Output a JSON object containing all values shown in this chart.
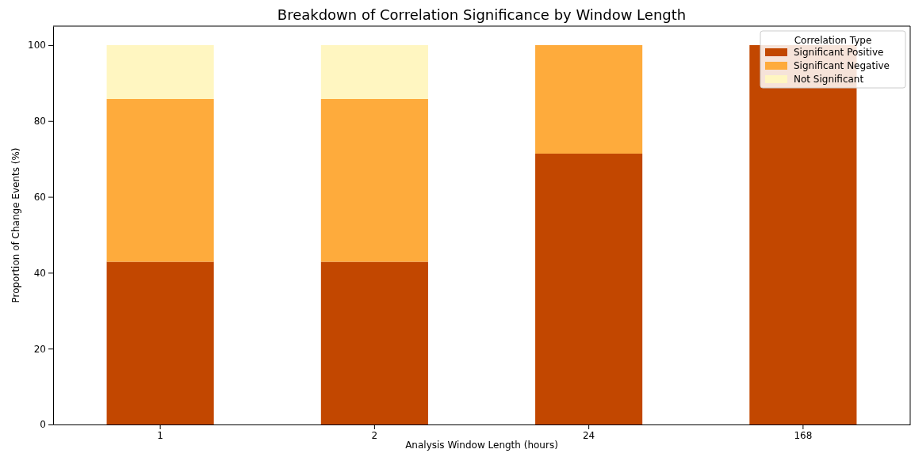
{
  "chart_data": {
    "type": "bar",
    "title": "Breakdown of Correlation Significance by Window Length",
    "xlabel": "Analysis Window Length (hours)",
    "ylabel": "Proportion of Change Events (%)",
    "legend_title": "Correlation Type",
    "categories": [
      "1",
      "2",
      "24",
      "168"
    ],
    "stacked": true,
    "ylim": [
      0,
      105
    ],
    "yticks": [
      0,
      20,
      40,
      60,
      80,
      100
    ],
    "legend": "top right",
    "series": [
      {
        "name": "Significant Positive",
        "color": "#c24700",
        "values": [
          42.9,
          42.9,
          71.4,
          100
        ]
      },
      {
        "name": "Significant Negative",
        "color": "#feab3c",
        "values": [
          42.9,
          42.9,
          28.6,
          0
        ]
      },
      {
        "name": "Not Significant",
        "color": "#fff6c1",
        "values": [
          14.2,
          14.2,
          0,
          0
        ]
      }
    ]
  }
}
